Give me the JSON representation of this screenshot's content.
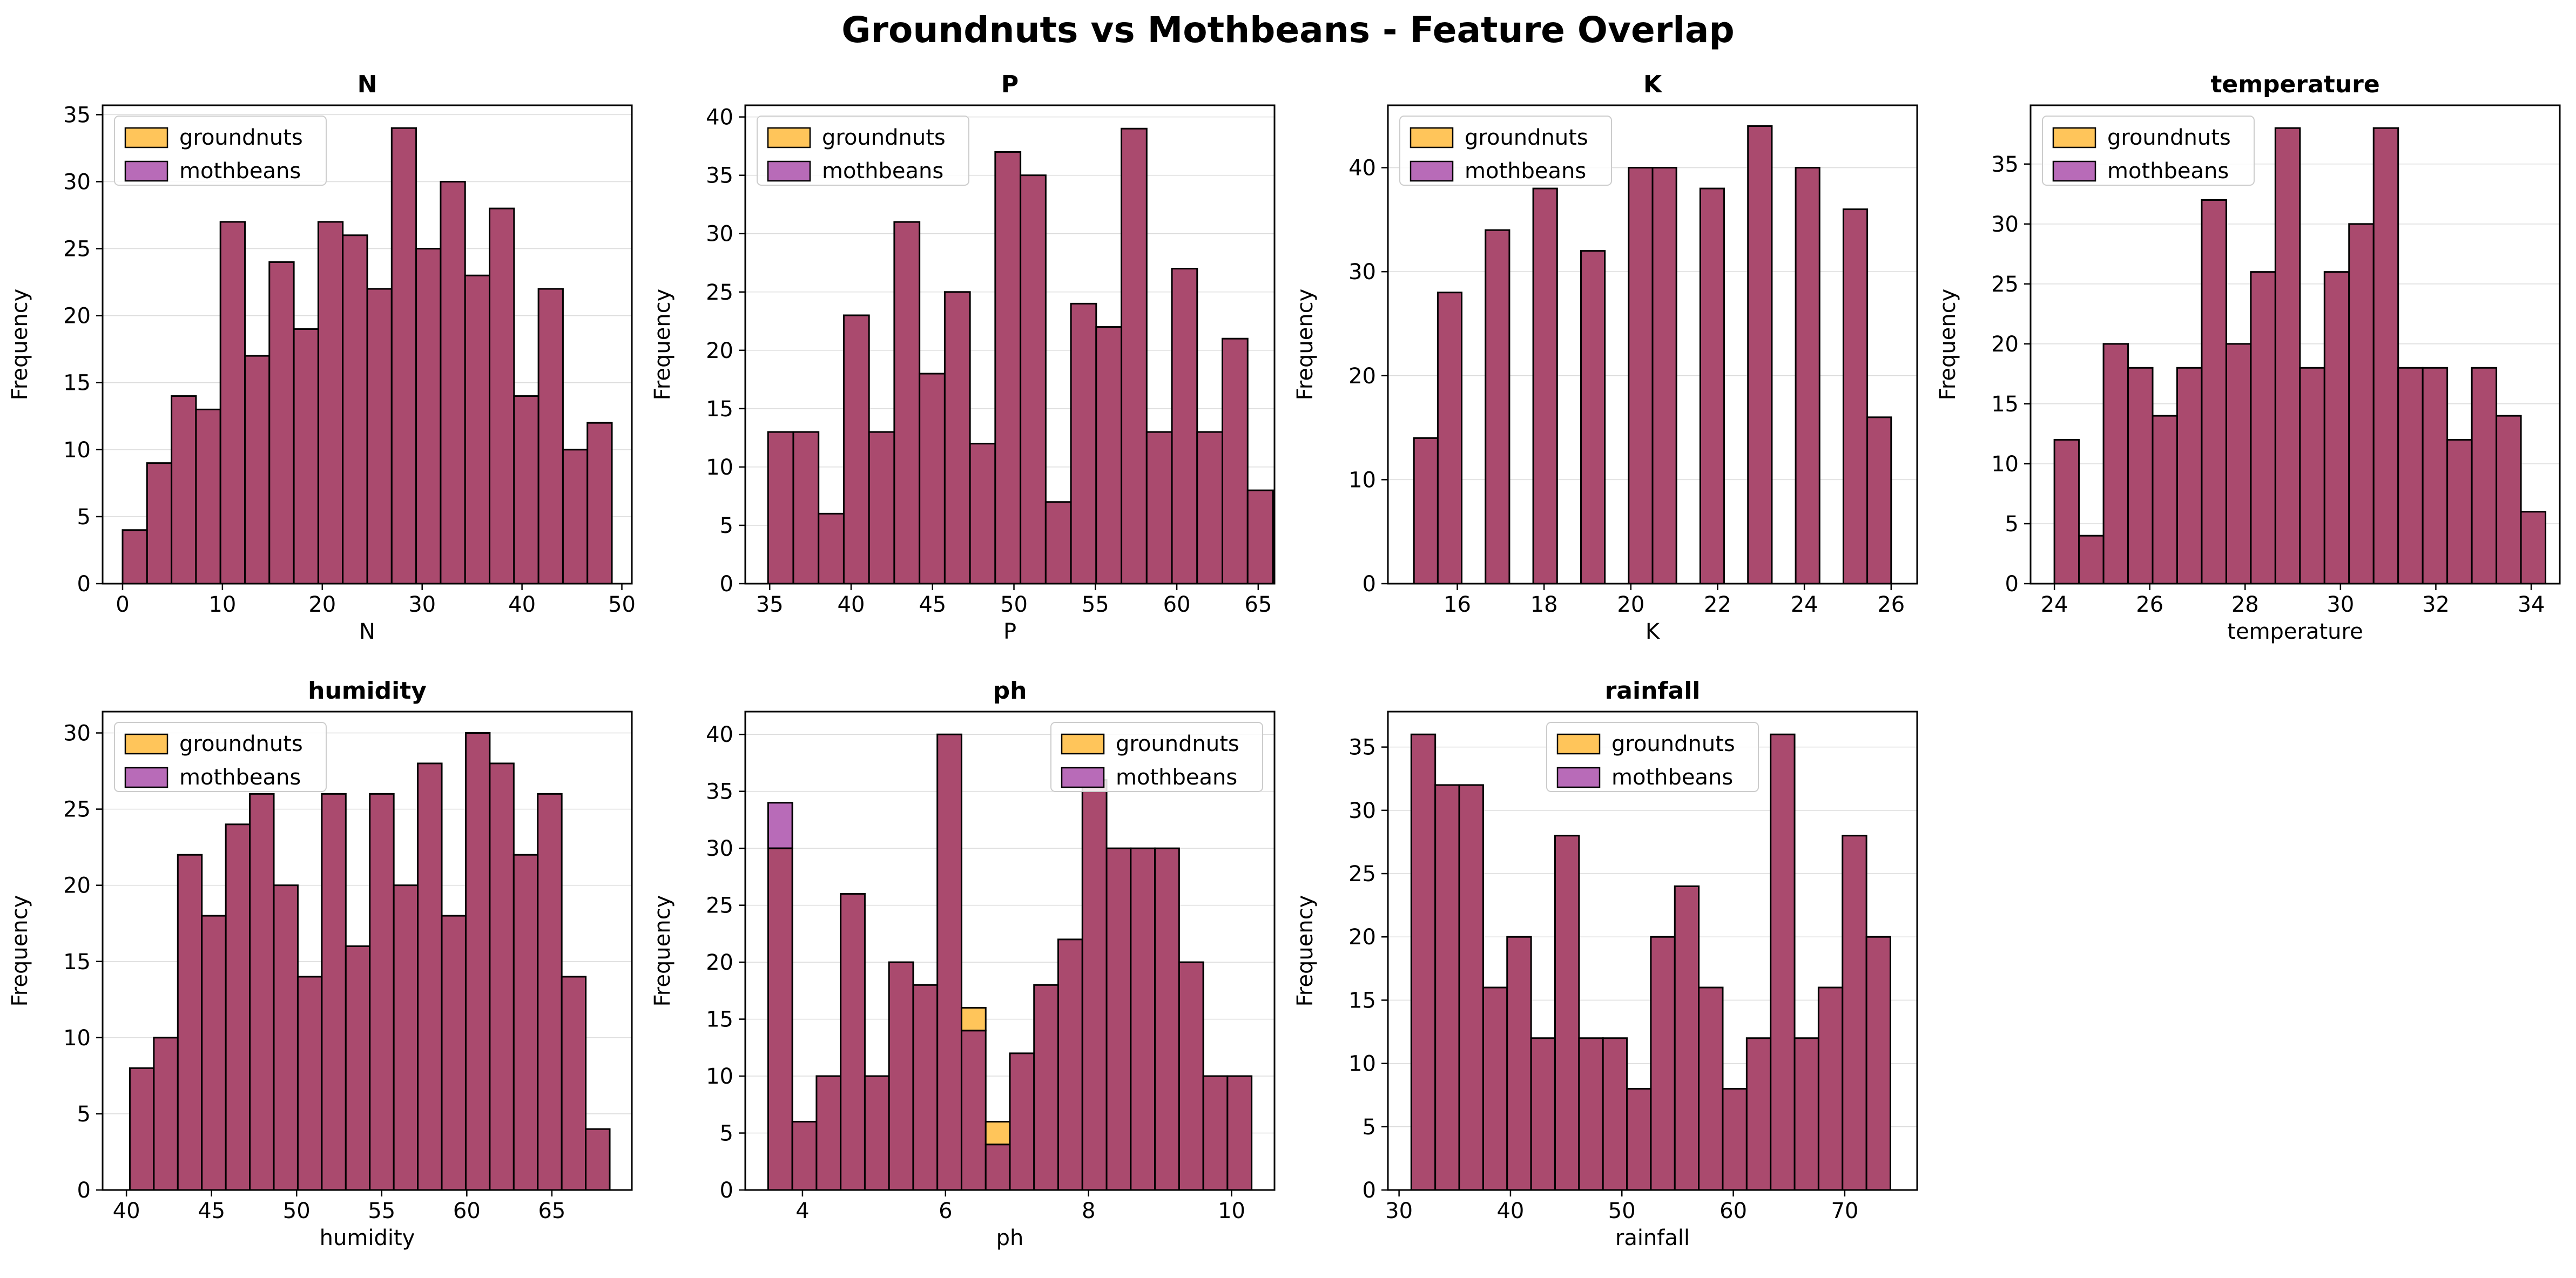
{
  "title": "Groundnuts vs Mothbeans - Feature Overlap",
  "ylabel": "Frequency",
  "colors": {
    "groundnuts": "#FFA500",
    "mothbeans": "#800080",
    "overlap": "#AA4A6E"
  },
  "chart_data": [
    {
      "type": "bar",
      "title": "N",
      "xlabel": "N",
      "ylabel": "Frequency",
      "xlim": [
        -2,
        51
      ],
      "ylim": [
        0,
        35.7
      ],
      "xticks": [
        0,
        10,
        20,
        30,
        40,
        50
      ],
      "yticks": [
        0,
        5,
        10,
        15,
        20,
        25,
        30,
        35
      ],
      "legend": "top-left",
      "grid": "y",
      "bins": {
        "start": 0,
        "width": 2.45,
        "count": 20
      },
      "series": [
        {
          "name": "groundnuts",
          "values": [
            4,
            9,
            14,
            13,
            27,
            17,
            24,
            19,
            27,
            26,
            22,
            34,
            25,
            30,
            23,
            28,
            14,
            22,
            10,
            12
          ]
        },
        {
          "name": "mothbeans",
          "values": [
            4,
            9,
            14,
            13,
            27,
            17,
            24,
            19,
            27,
            26,
            22,
            34,
            25,
            30,
            23,
            28,
            14,
            22,
            10,
            12
          ]
        }
      ]
    },
    {
      "type": "bar",
      "title": "P",
      "xlabel": "P",
      "ylabel": "Frequency",
      "xlim": [
        33.5,
        66
      ],
      "ylim": [
        0,
        41
      ],
      "xticks": [
        35,
        40,
        45,
        50,
        55,
        60,
        65
      ],
      "yticks": [
        0,
        5,
        10,
        15,
        20,
        25,
        30,
        35,
        40
      ],
      "legend": "top-left",
      "grid": "y",
      "bins": {
        "start": 34.9,
        "width": 1.55,
        "count": 20
      },
      "series": [
        {
          "name": "groundnuts",
          "values": [
            13,
            13,
            6,
            23,
            13,
            31,
            18,
            25,
            12,
            37,
            35,
            7,
            24,
            22,
            39,
            13,
            27,
            13,
            21,
            8
          ]
        },
        {
          "name": "mothbeans",
          "values": [
            13,
            13,
            6,
            23,
            13,
            31,
            18,
            25,
            12,
            37,
            35,
            7,
            24,
            22,
            39,
            13,
            27,
            13,
            21,
            8
          ]
        }
      ]
    },
    {
      "type": "bar",
      "title": "K",
      "xlabel": "K",
      "ylabel": "Frequency",
      "xlim": [
        14.4,
        26.6
      ],
      "ylim": [
        0,
        46
      ],
      "xticks": [
        16,
        18,
        20,
        22,
        24,
        26
      ],
      "yticks": [
        0,
        10,
        20,
        30,
        40
      ],
      "legend": "top-left",
      "grid": "y",
      "bins": {
        "start": 15,
        "width": 0.55,
        "count": 20
      },
      "series": [
        {
          "name": "groundnuts",
          "values": [
            14,
            28,
            0,
            34,
            0,
            38,
            0,
            32,
            0,
            40,
            40,
            0,
            38,
            0,
            44,
            0,
            40,
            0,
            36,
            16
          ]
        },
        {
          "name": "mothbeans",
          "values": [
            14,
            28,
            0,
            34,
            0,
            38,
            0,
            32,
            0,
            40,
            40,
            0,
            38,
            0,
            44,
            0,
            40,
            0,
            36,
            16
          ]
        }
      ]
    },
    {
      "type": "bar",
      "title": "temperature",
      "xlabel": "temperature",
      "ylabel": "Frequency",
      "xlim": [
        23.5,
        34.6
      ],
      "ylim": [
        0,
        39.9
      ],
      "xticks": [
        24,
        26,
        28,
        30,
        32,
        34
      ],
      "yticks": [
        0,
        5,
        10,
        15,
        20,
        25,
        30,
        35
      ],
      "legend": "top-left",
      "grid": "y",
      "bins": {
        "start": 24,
        "width": 0.515,
        "count": 20
      },
      "series": [
        {
          "name": "groundnuts",
          "values": [
            12,
            4,
            20,
            18,
            14,
            18,
            32,
            20,
            26,
            38,
            18,
            26,
            30,
            38,
            18,
            18,
            12,
            18,
            14,
            6
          ]
        },
        {
          "name": "mothbeans",
          "values": [
            12,
            4,
            20,
            18,
            14,
            18,
            32,
            20,
            26,
            38,
            18,
            26,
            30,
            38,
            18,
            18,
            12,
            18,
            14,
            6
          ]
        }
      ]
    },
    {
      "type": "bar",
      "title": "humidity",
      "xlabel": "humidity",
      "ylabel": "Frequency",
      "xlim": [
        38.6,
        69.7
      ],
      "ylim": [
        0,
        31.4
      ],
      "xticks": [
        40,
        45,
        50,
        55,
        60,
        65
      ],
      "yticks": [
        0,
        5,
        10,
        15,
        20,
        25,
        30
      ],
      "legend": "top-left",
      "grid": "y",
      "bins": {
        "start": 40.2,
        "width": 1.41,
        "count": 20
      },
      "series": [
        {
          "name": "groundnuts",
          "values": [
            8,
            10,
            22,
            18,
            24,
            26,
            20,
            14,
            26,
            16,
            26,
            20,
            28,
            18,
            30,
            28,
            22,
            26,
            14,
            4
          ]
        },
        {
          "name": "mothbeans",
          "values": [
            8,
            10,
            22,
            18,
            24,
            26,
            20,
            14,
            26,
            16,
            26,
            20,
            28,
            18,
            30,
            28,
            22,
            26,
            14,
            4
          ]
        }
      ]
    },
    {
      "type": "bar",
      "title": "ph",
      "xlabel": "ph",
      "ylabel": "Frequency",
      "xlim": [
        3.2,
        10.6
      ],
      "ylim": [
        0,
        42
      ],
      "xticks": [
        4,
        6,
        8,
        10
      ],
      "yticks": [
        0,
        5,
        10,
        15,
        20,
        25,
        30,
        35,
        40
      ],
      "legend": "top-right",
      "grid": "y",
      "bins": {
        "start": 3.52,
        "width": 0.338,
        "count": 20
      },
      "series": [
        {
          "name": "groundnuts",
          "values": [
            30,
            6,
            10,
            26,
            10,
            20,
            18,
            40,
            16,
            6,
            12,
            18,
            22,
            36,
            30,
            30,
            30,
            20,
            10,
            10
          ]
        },
        {
          "name": "mothbeans",
          "values": [
            34,
            6,
            10,
            26,
            10,
            20,
            18,
            40,
            14,
            4,
            12,
            18,
            22,
            36,
            30,
            30,
            30,
            20,
            10,
            10
          ]
        }
      ]
    },
    {
      "type": "bar",
      "title": "rainfall",
      "xlabel": "rainfall",
      "ylabel": "Frequency",
      "xlim": [
        29,
        76.5
      ],
      "ylim": [
        0,
        37.8
      ],
      "xticks": [
        30,
        40,
        50,
        60,
        70
      ],
      "yticks": [
        0,
        5,
        10,
        15,
        20,
        25,
        30,
        35
      ],
      "legend": "top-center",
      "grid": "y",
      "bins": {
        "start": 31.1,
        "width": 2.15,
        "count": 20
      },
      "series": [
        {
          "name": "groundnuts",
          "values": [
            36,
            32,
            32,
            16,
            20,
            12,
            28,
            12,
            12,
            8,
            20,
            24,
            16,
            8,
            12,
            36,
            12,
            16,
            28,
            20
          ]
        },
        {
          "name": "mothbeans",
          "values": [
            36,
            32,
            32,
            16,
            20,
            12,
            28,
            12,
            12,
            8,
            20,
            24,
            16,
            8,
            12,
            36,
            12,
            16,
            28,
            20
          ]
        }
      ]
    }
  ]
}
